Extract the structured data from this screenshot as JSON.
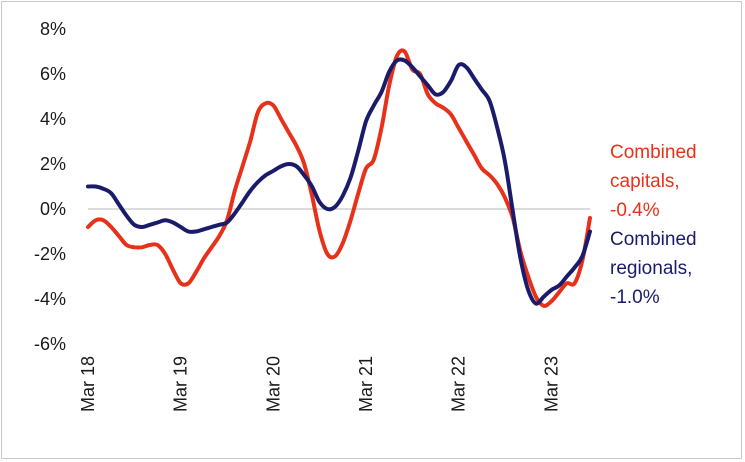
{
  "chart_data": {
    "type": "line",
    "title": "",
    "xlabel": "",
    "ylabel": "",
    "x_tick_labels": [
      "Mar 18",
      "Mar 19",
      "Mar 20",
      "Mar 21",
      "Mar 22",
      "Mar 23"
    ],
    "y_tick_labels": [
      "8%",
      "6%",
      "4%",
      "2%",
      "0%",
      "-2%",
      "-4%",
      "-6%"
    ],
    "y_ticks": [
      8,
      6,
      4,
      2,
      0,
      -2,
      -4,
      -6
    ],
    "ylim": [
      -6,
      8
    ],
    "x_start": "Mar 18",
    "x_end": "Mar 23",
    "x_unit": "month",
    "legend_placement": "right",
    "zero_line": true,
    "grid": false,
    "series": [
      {
        "name": "Combined capitals",
        "legend_lines": [
          "Combined",
          "capitals,",
          "-0.4%"
        ],
        "color": "#e8311a",
        "values": [
          -0.8,
          -0.5,
          -0.5,
          -0.8,
          -1.2,
          -1.6,
          -1.7,
          -1.7,
          -1.6,
          -1.6,
          -2.0,
          -2.7,
          -3.3,
          -3.3,
          -2.8,
          -2.2,
          -1.7,
          -1.2,
          -0.5,
          0.8,
          1.9,
          3.0,
          4.3,
          4.7,
          4.6,
          4.0,
          3.4,
          2.8,
          2.0,
          0.6,
          -1.0,
          -2.0,
          -2.1,
          -1.5,
          -0.5,
          0.7,
          1.8,
          2.2,
          3.6,
          5.5,
          6.8,
          7.0,
          6.2,
          6.0,
          5.1,
          4.7,
          4.5,
          4.2,
          3.6,
          3.0,
          2.4,
          1.8,
          1.5,
          1.1,
          0.5,
          -0.4,
          -1.9,
          -3.0,
          -3.9,
          -4.3,
          -4.1,
          -3.7,
          -3.3,
          -3.3,
          -2.3,
          -0.4
        ],
        "end_value": -0.4
      },
      {
        "name": "Combined regionals",
        "legend_lines": [
          "Combined",
          "regionals,",
          "-1.0%"
        ],
        "color": "#1b1b6b",
        "values": [
          1.0,
          1.0,
          0.9,
          0.7,
          0.2,
          -0.3,
          -0.7,
          -0.8,
          -0.7,
          -0.6,
          -0.5,
          -0.6,
          -0.8,
          -1.0,
          -1.0,
          -0.9,
          -0.8,
          -0.7,
          -0.6,
          -0.2,
          0.3,
          0.8,
          1.2,
          1.5,
          1.7,
          1.9,
          2.0,
          1.9,
          1.5,
          1.0,
          0.3,
          0.0,
          0.1,
          0.6,
          1.4,
          2.6,
          3.9,
          4.6,
          5.2,
          6.1,
          6.6,
          6.6,
          6.3,
          5.9,
          5.5,
          5.1,
          5.2,
          5.7,
          6.4,
          6.3,
          5.8,
          5.3,
          4.8,
          3.6,
          2.1,
          -0.1,
          -2.2,
          -3.6,
          -4.2,
          -3.9,
          -3.6,
          -3.4,
          -3.0,
          -2.6,
          -2.1,
          -1.0
        ],
        "end_value": -1.0
      }
    ]
  }
}
